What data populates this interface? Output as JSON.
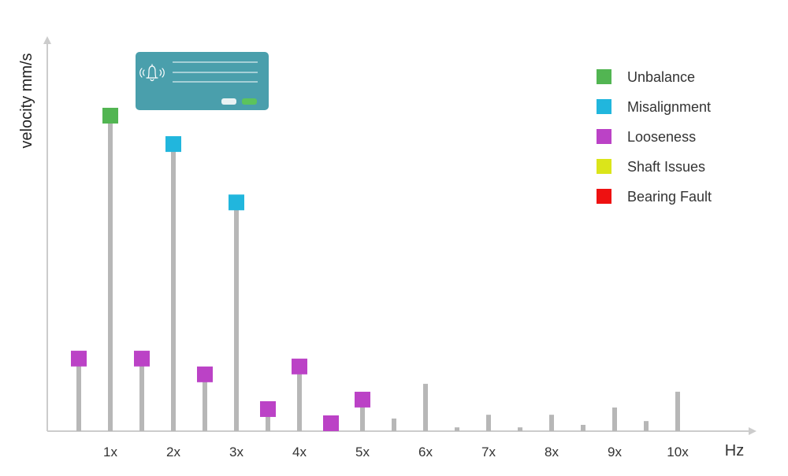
{
  "chart_data": {
    "type": "bar",
    "xlabel": "Hz",
    "ylabel": "velocity mm/s",
    "tick_labels": [
      "1x",
      "2x",
      "3x",
      "4x",
      "5x",
      "6x",
      "7x",
      "8x",
      "9x",
      "10x"
    ],
    "ylim": [
      0,
      100
    ],
    "grid": false,
    "legend_position": "top-right",
    "series": [
      {
        "name": "Unbalance",
        "color": "#52b552"
      },
      {
        "name": "Misalignment",
        "color": "#21b6dd"
      },
      {
        "name": "Looseness",
        "color": "#bb42c6"
      },
      {
        "name": "Shaft Issues",
        "color": "#dbe51a"
      },
      {
        "name": "Bearing Fault",
        "color": "#ee1111"
      }
    ],
    "bars": [
      {
        "order": 0.5,
        "value": 23,
        "marker": "Looseness"
      },
      {
        "order": 1.0,
        "value": 100,
        "marker": "Unbalance"
      },
      {
        "order": 1.5,
        "value": 23,
        "marker": "Looseness"
      },
      {
        "order": 2.0,
        "value": 91,
        "marker": "Misalignment"
      },
      {
        "order": 2.5,
        "value": 18,
        "marker": "Looseness"
      },
      {
        "order": 3.0,
        "value": 72.5,
        "marker": "Misalignment"
      },
      {
        "order": 3.5,
        "value": 7,
        "marker": "Looseness"
      },
      {
        "order": 4.0,
        "value": 20.5,
        "marker": "Looseness"
      },
      {
        "order": 4.5,
        "value": 2.5,
        "marker": "Looseness"
      },
      {
        "order": 5.0,
        "value": 10,
        "marker": "Looseness"
      },
      {
        "order": 5.5,
        "value": 4,
        "marker": null
      },
      {
        "order": 6.0,
        "value": 15,
        "marker": null
      },
      {
        "order": 6.5,
        "value": 1.2,
        "marker": null
      },
      {
        "order": 7.0,
        "value": 5.2,
        "marker": null
      },
      {
        "order": 7.5,
        "value": 1.2,
        "marker": null
      },
      {
        "order": 8.0,
        "value": 5.2,
        "marker": null
      },
      {
        "order": 8.5,
        "value": 2,
        "marker": null
      },
      {
        "order": 9.0,
        "value": 7.5,
        "marker": null
      },
      {
        "order": 9.5,
        "value": 3.2,
        "marker": null
      },
      {
        "order": 10.0,
        "value": 12.5,
        "marker": null
      }
    ]
  },
  "alert_card": {
    "icon": "bell-icon",
    "color": "#4a9fac"
  }
}
